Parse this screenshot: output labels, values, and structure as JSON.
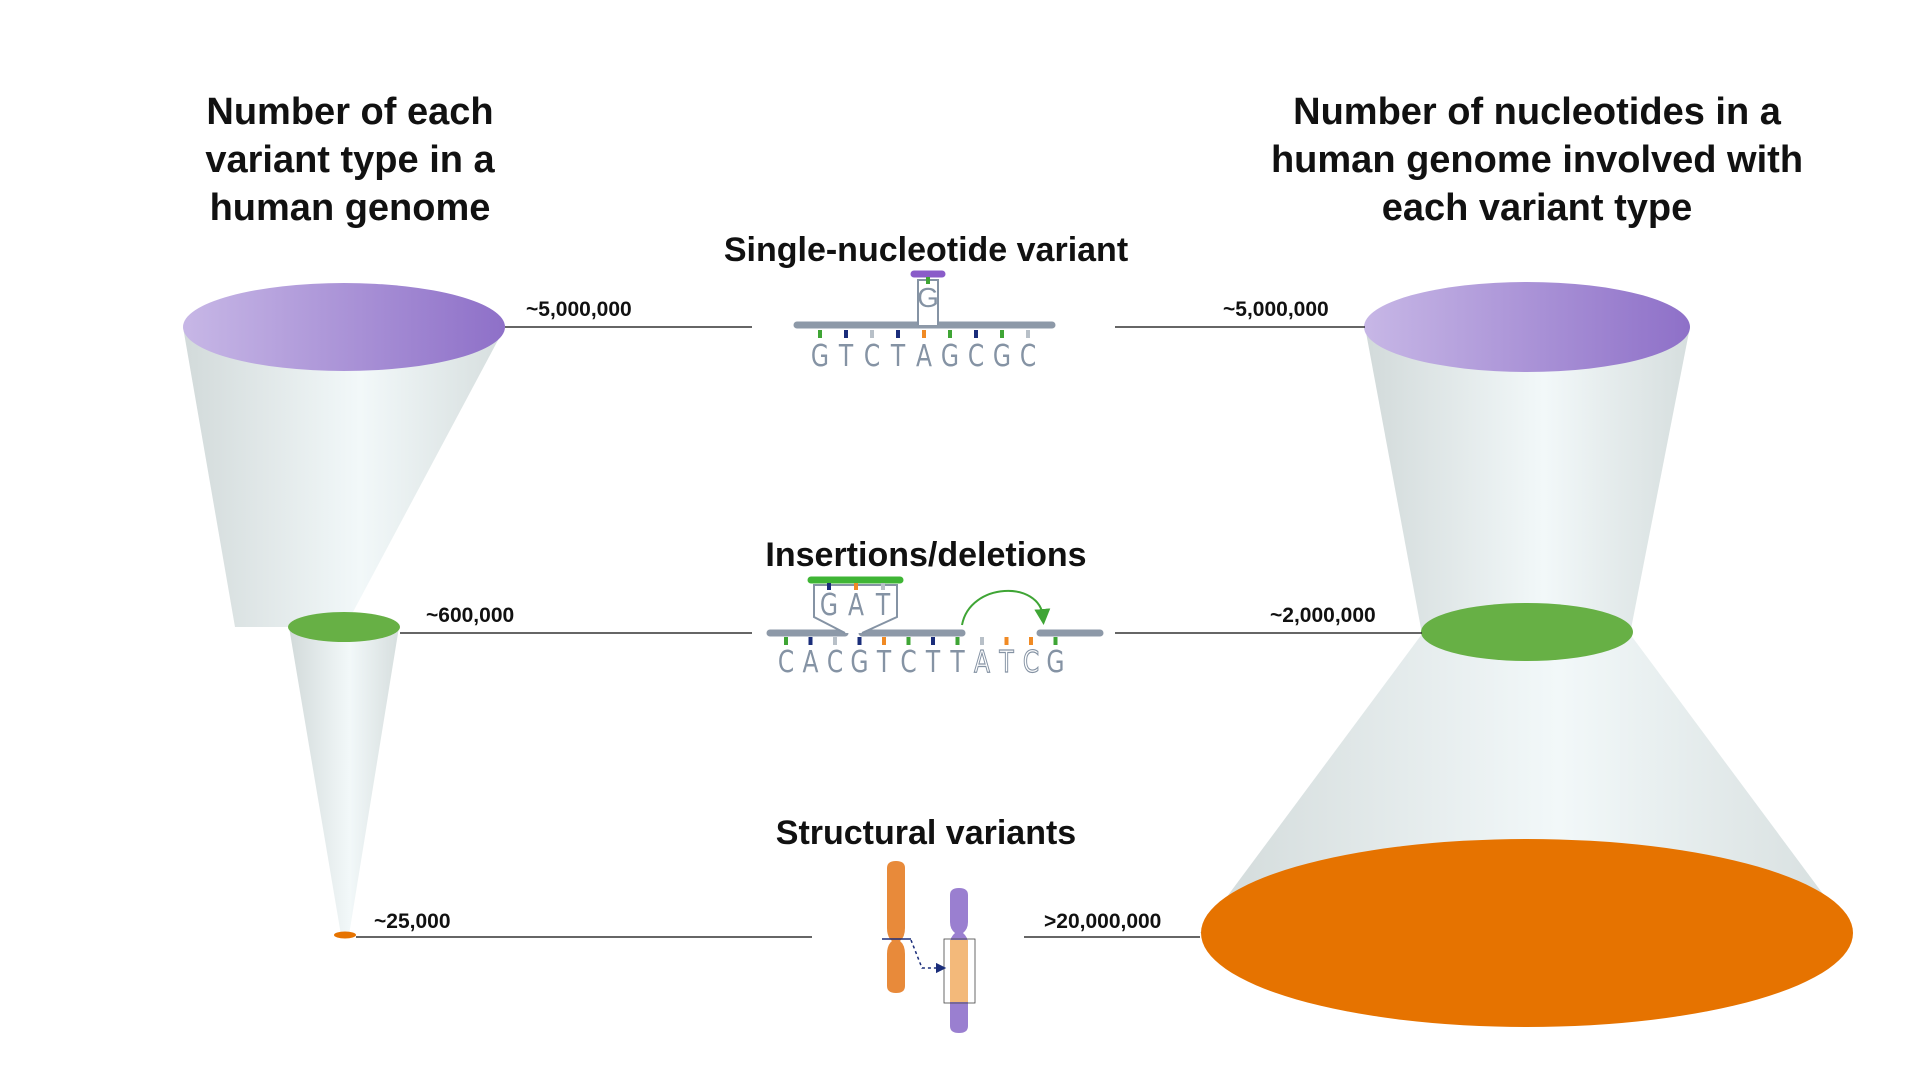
{
  "titles": {
    "left": "Number of each\nvariant type in a\nhuman genome",
    "right": "Number of nucleotides in a\nhuman genome involved with\neach variant type"
  },
  "variants": {
    "snv": {
      "label": "Single-nucleotide variant",
      "count": "~5,000,000",
      "nucleotides": "~5,000,000",
      "sequence": [
        "G",
        "T",
        "C",
        "T",
        "A",
        "G",
        "C",
        "G",
        "C"
      ],
      "alt_base": "G",
      "color": "#9a7fd0"
    },
    "indel": {
      "label": "Insertions/deletions",
      "count": "~600,000",
      "nucleotides": "~2,000,000",
      "sequence": [
        "C",
        "A",
        "C",
        "G",
        "T",
        "C",
        "T",
        "T",
        "A",
        "T",
        "C",
        "G"
      ],
      "insert": [
        "G",
        "A",
        "T"
      ],
      "color": "#67b045"
    },
    "sv": {
      "label": "Structural variants",
      "count": "~25,000",
      "nucleotides": ">20,000,000",
      "color": "#e67300"
    }
  },
  "colors": {
    "snv": "#9a7fd0",
    "indel": "#67b045",
    "sv": "#e67300",
    "funnel": "#dfe5e5",
    "letters": "#8593a4"
  }
}
